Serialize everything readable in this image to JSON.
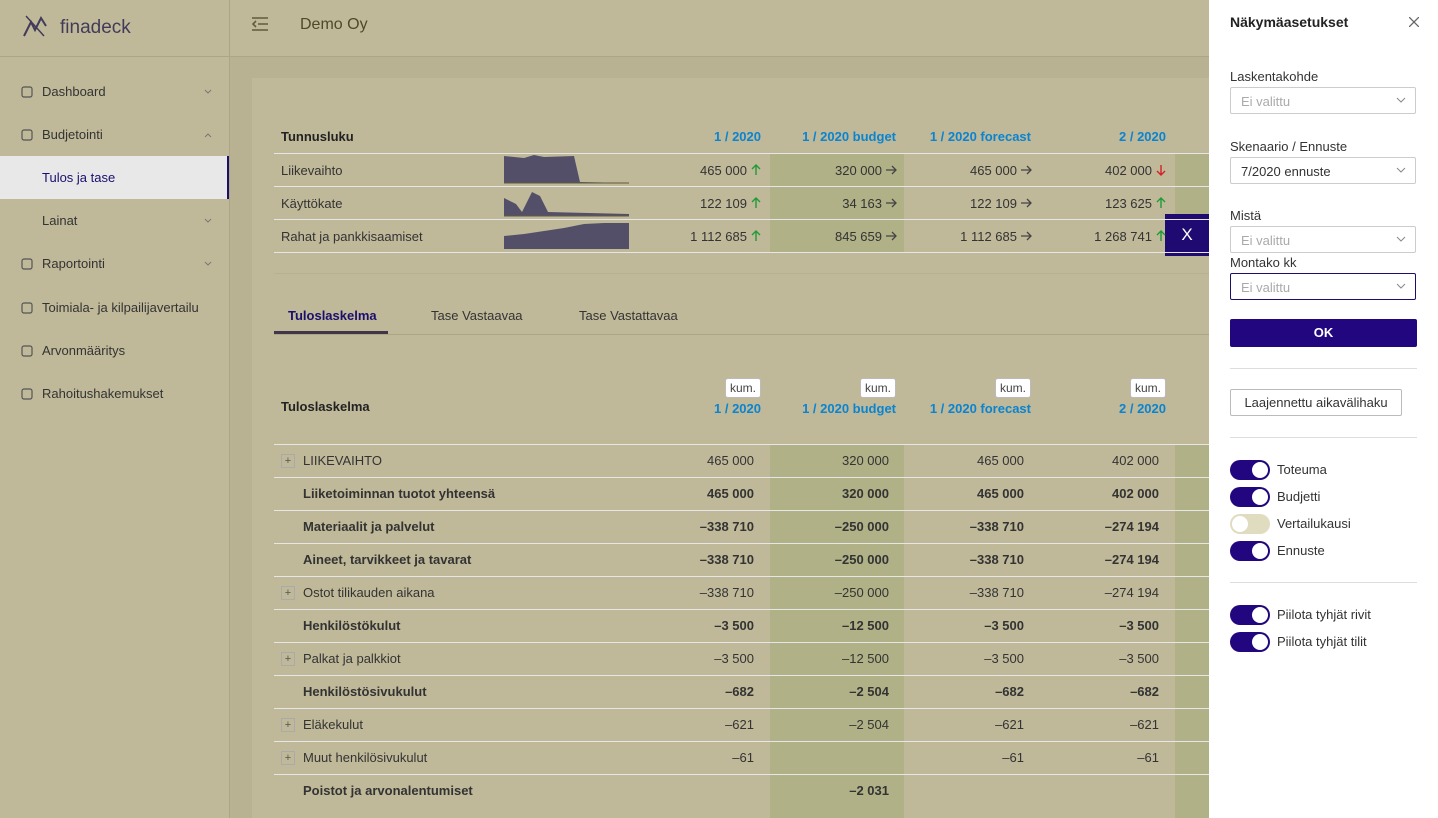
{
  "sidebar": {
    "logo": "finadeck",
    "nav": [
      "Dashboard",
      "Budjetointi",
      "Tulos ja tase",
      "Lainat",
      "Raportointi",
      "Toimiala- ja kilpailijavertailu",
      "Arvonmääritys",
      "Rahoitushakemukset"
    ]
  },
  "header": {
    "company": "Demo Oy"
  },
  "kpi_table": {
    "header": "Tunnusluku",
    "columns": [
      "1 / 2020",
      "1 / 2020 budget",
      "1 / 2020 forecast",
      "2 / 2020"
    ],
    "rows": [
      {
        "label": "Liikevaihto",
        "values": [
          "465 000",
          "320 000",
          "465 000",
          "402 000"
        ]
      },
      {
        "label": "Käyttökate",
        "values": [
          "122 109",
          "34 163",
          "122 109",
          "123 625"
        ]
      },
      {
        "label": "Rahat ja pankkisaamiset",
        "values": [
          "1 112 685",
          "845 659",
          "1 112 685",
          "1 268 741"
        ]
      }
    ]
  },
  "close_button": "X",
  "tabs": [
    "Tuloslaskelma",
    "Tase Vastaavaa",
    "Tase Vastattavaa"
  ],
  "statement_table": {
    "header": "Tuloslaskelma",
    "column_badge": "kum.",
    "columns": [
      "1 / 2020",
      "1 / 2020 budget",
      "1 / 2020 forecast",
      "2 / 2020"
    ],
    "rows": [
      {
        "label": "LIIKEVAIHTO",
        "bold": false,
        "expandable": true,
        "values": [
          "465 000",
          "320 000",
          "465 000",
          "402 000"
        ]
      },
      {
        "label": "Liiketoiminnan tuotot yhteensä",
        "bold": true,
        "expandable": false,
        "values": [
          "465 000",
          "320 000",
          "465 000",
          "402 000"
        ]
      },
      {
        "label": "Materiaalit ja palvelut",
        "bold": true,
        "expandable": false,
        "values": [
          "–338 710",
          "–250 000",
          "–338 710",
          "–274 194"
        ]
      },
      {
        "label": "Aineet, tarvikkeet ja tavarat",
        "bold": true,
        "expandable": false,
        "values": [
          "–338 710",
          "–250 000",
          "–338 710",
          "–274 194"
        ]
      },
      {
        "label": "Ostot tilikauden aikana",
        "bold": false,
        "expandable": true,
        "values": [
          "–338 710",
          "–250 000",
          "–338 710",
          "–274 194"
        ]
      },
      {
        "label": "Henkilöstökulut",
        "bold": true,
        "expandable": false,
        "values": [
          "–3 500",
          "–12 500",
          "–3 500",
          "–3 500"
        ]
      },
      {
        "label": "Palkat ja palkkiot",
        "bold": false,
        "expandable": true,
        "values": [
          "–3 500",
          "–12 500",
          "–3 500",
          "–3 500"
        ]
      },
      {
        "label": "Henkilöstösivukulut",
        "bold": true,
        "expandable": false,
        "values": [
          "–682",
          "–2 504",
          "–682",
          "–682"
        ]
      },
      {
        "label": "Eläkekulut",
        "bold": false,
        "expandable": true,
        "values": [
          "–621",
          "–2 504",
          "–621",
          "–621"
        ]
      },
      {
        "label": "Muut henkilösivukulut",
        "bold": false,
        "expandable": true,
        "values": [
          "–61",
          null,
          "–61",
          "–61"
        ]
      },
      {
        "label": "Poistot ja arvonalentumiset",
        "bold": true,
        "expandable": false,
        "values": [
          null,
          "–2 031",
          null,
          null
        ]
      }
    ]
  },
  "panel": {
    "title": "Näkymäasetukset",
    "fields": [
      {
        "label": "Laskentakohde",
        "value": "Ei valittu",
        "placeholder": true
      },
      {
        "label": "Skenaario / Ennuste",
        "value": "7/2020 ennuste",
        "placeholder": false
      },
      {
        "label": "Mistä",
        "value": "Ei valittu",
        "placeholder": true
      },
      {
        "label": "Montako kk",
        "value": "Ei valittu",
        "placeholder": true
      }
    ],
    "ok": "OK",
    "range_button": "Laajennettu aikavälihaku",
    "toggles": [
      {
        "label": "Toteuma",
        "on": true
      },
      {
        "label": "Budjetti",
        "on": true
      },
      {
        "label": "Vertailukausi",
        "on": false
      },
      {
        "label": "Ennuste",
        "on": true
      }
    ],
    "toggles2": [
      {
        "label": "Piilota tyhjät rivit",
        "on": true
      },
      {
        "label": "Piilota tyhjät tilit",
        "on": true
      }
    ]
  }
}
